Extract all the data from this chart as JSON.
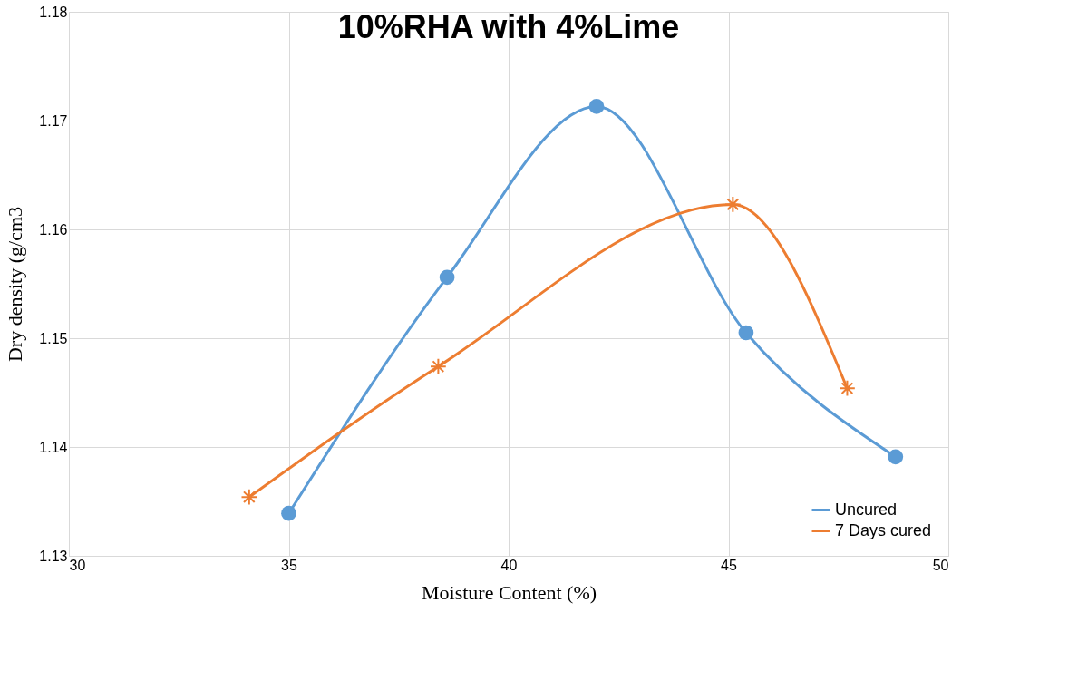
{
  "chart_data": {
    "type": "line",
    "title": "10%RHA with 4%Lime",
    "xlabel": "Moisture Content (%)",
    "ylabel": "Dry density (g/cm3",
    "xlim": [
      30,
      50
    ],
    "xticks": [
      30,
      35,
      40,
      45,
      50
    ],
    "ylim": [
      1.13,
      1.18
    ],
    "yticks": [
      1.13,
      1.14,
      1.15,
      1.16,
      1.17,
      1.18
    ],
    "grid": true,
    "legend": "bottom right",
    "series": [
      {
        "name": "Uncured",
        "color": "#5b9bd5",
        "marker": "circle",
        "x": [
          35.0,
          38.6,
          42.0,
          45.4,
          48.8
        ],
        "values": [
          1.1339,
          1.1556,
          1.1713,
          1.1505,
          1.1391
        ]
      },
      {
        "name": "7 Days cured",
        "color": "#ed7d31",
        "marker": "cross",
        "x": [
          34.1,
          38.4,
          45.1,
          47.7
        ],
        "values": [
          1.1354,
          1.1474,
          1.1623,
          1.1454
        ]
      }
    ]
  }
}
